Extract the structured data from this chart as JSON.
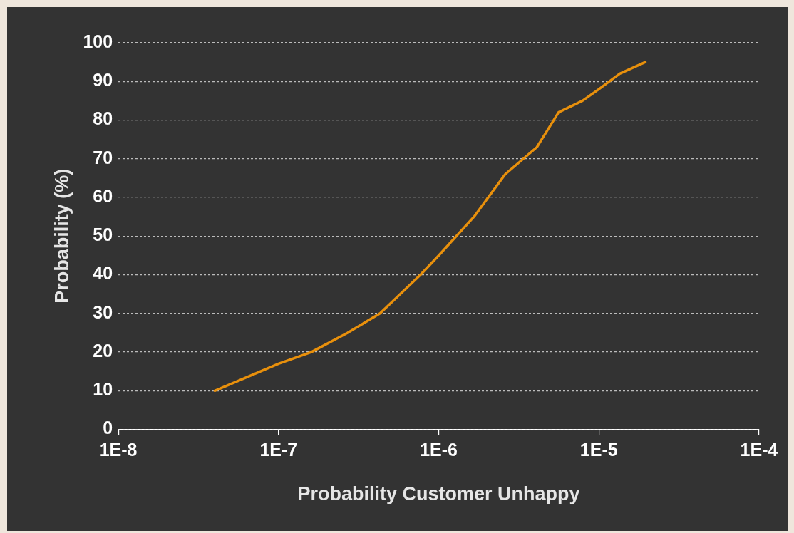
{
  "chart_data": {
    "type": "line",
    "xlabel": "Probability Customer Unhappy",
    "ylabel": "Probability (%)",
    "x": [
      4e-08,
      1e-07,
      1.6e-07,
      2.7e-07,
      4.3e-07,
      7.7e-07,
      1e-06,
      1.66e-06,
      2.6e-06,
      4.1e-06,
      5.6e-06,
      7.9e-06,
      1e-05,
      1.35e-05,
      1.95e-05
    ],
    "series": [
      {
        "color": "#e8900c",
        "values": [
          10,
          17,
          20,
          25,
          30,
          40,
          45,
          55,
          66,
          73,
          82,
          85,
          88,
          92,
          95
        ]
      }
    ],
    "log": "x",
    "xlim": [
      1e-08,
      0.0001
    ],
    "xticks": [
      {
        "value": 1e-08,
        "label": "1E-8"
      },
      {
        "value": 1e-07,
        "label": "1E-7"
      },
      {
        "value": 1e-06,
        "label": "1E-6"
      },
      {
        "value": 1e-05,
        "label": "1E-5"
      },
      {
        "value": 0.0001,
        "label": "1E-4"
      }
    ],
    "ylim": [
      0,
      100
    ],
    "yticks": [
      0,
      10,
      20,
      30,
      40,
      50,
      60,
      70,
      80,
      90,
      100
    ],
    "grid": "y",
    "legend": false,
    "marker": "none",
    "line_style": "solid"
  }
}
